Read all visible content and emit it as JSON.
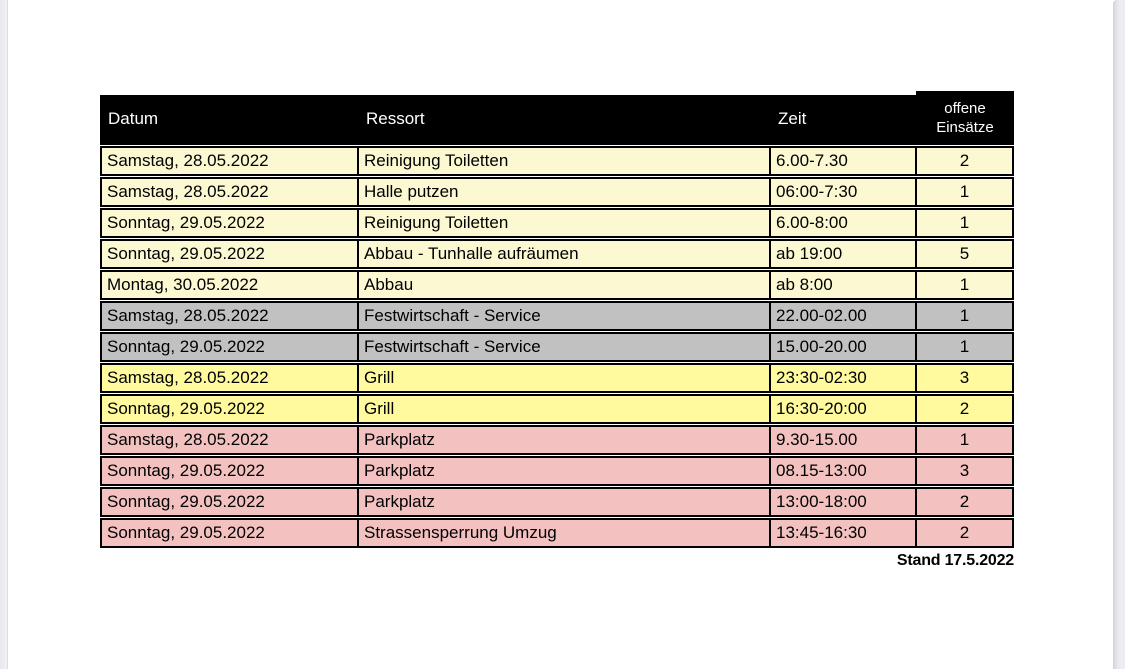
{
  "document": {
    "colors": {
      "header_bg": "#000000",
      "header_text": "#ffffff",
      "border": "#000000",
      "row_cream": "#fbf8d2",
      "row_gray": "#c1c1c1",
      "row_yellow": "#fefa9d",
      "row_pink": "#f3c2c0"
    },
    "table": {
      "columns": [
        {
          "key": "datum",
          "label": "Datum"
        },
        {
          "key": "ressort",
          "label": "Ressort"
        },
        {
          "key": "zeit",
          "label": "Zeit"
        },
        {
          "key": "einsaetze",
          "label": "offene\nEinsätze"
        }
      ],
      "rows": [
        {
          "datum": "Samstag, 28.05.2022",
          "ressort": "Reinigung Toiletten",
          "zeit": "6.00-7.30",
          "einsaetze": "2",
          "section": "cream"
        },
        {
          "datum": "Samstag, 28.05.2022",
          "ressort": "Halle putzen",
          "zeit": "06:00-7:30",
          "einsaetze": "1",
          "section": "cream"
        },
        {
          "datum": "Sonntag, 29.05.2022",
          "ressort": "Reinigung Toiletten",
          "zeit": "6.00-8:00",
          "einsaetze": "1",
          "section": "cream"
        },
        {
          "datum": "Sonntag, 29.05.2022",
          "ressort": "Abbau - Tunhalle aufräumen",
          "zeit": "ab 19:00",
          "einsaetze": "5",
          "section": "cream"
        },
        {
          "datum": "Montag, 30.05.2022",
          "ressort": "Abbau",
          "zeit": "ab 8:00",
          "einsaetze": "1",
          "section": "cream"
        },
        {
          "datum": "Samstag, 28.05.2022",
          "ressort": "Festwirtschaft - Service",
          "zeit": "22.00-02.00",
          "einsaetze": "1",
          "section": "gray"
        },
        {
          "datum": "Sonntag, 29.05.2022",
          "ressort": "Festwirtschaft - Service",
          "zeit": "15.00-20.00",
          "einsaetze": "1",
          "section": "gray"
        },
        {
          "datum": "Samstag, 28.05.2022",
          "ressort": "Grill",
          "zeit": "23:30-02:30",
          "einsaetze": "3",
          "section": "yellow"
        },
        {
          "datum": "Sonntag, 29.05.2022",
          "ressort": "Grill",
          "zeit": "16:30-20:00",
          "einsaetze": "2",
          "section": "yellow"
        },
        {
          "datum": "Samstag, 28.05.2022",
          "ressort": "Parkplatz",
          "zeit": "9.30-15.00",
          "einsaetze": "1",
          "section": "pink"
        },
        {
          "datum": "Sonntag, 29.05.2022",
          "ressort": "Parkplatz",
          "zeit": "08.15-13:00",
          "einsaetze": "3",
          "section": "pink"
        },
        {
          "datum": "Sonntag, 29.05.2022",
          "ressort": "Parkplatz",
          "zeit": "13:00-18:00",
          "einsaetze": "2",
          "section": "pink"
        },
        {
          "datum": "Sonntag, 29.05.2022",
          "ressort": "Strassensperrung Umzug",
          "zeit": "13:45-16:30",
          "einsaetze": "2",
          "section": "pink"
        }
      ],
      "footer_note": "Stand 17.5.2022"
    }
  }
}
